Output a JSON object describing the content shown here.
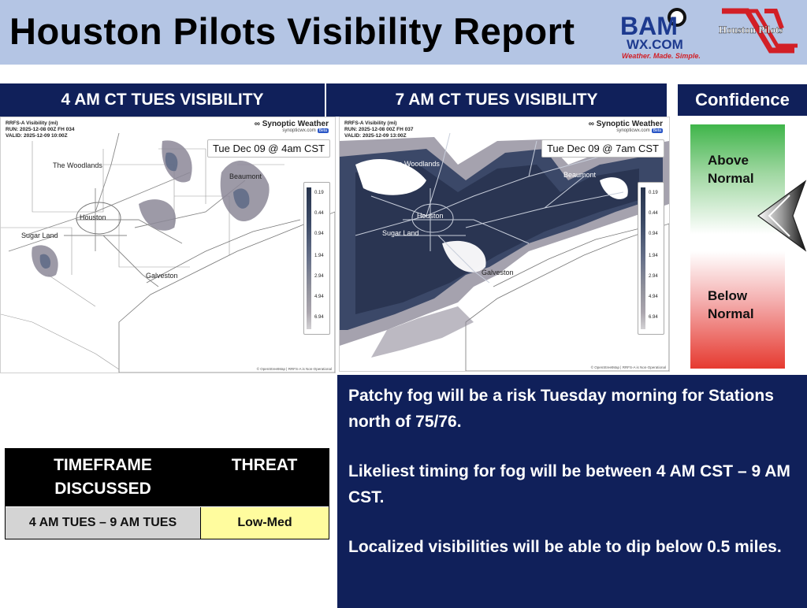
{
  "header": {
    "title": "Houston Pilots Visibility Report",
    "logo_bam_top": "BAM",
    "logo_bam_mid": "WX.COM",
    "logo_bam_tag": "Weather. Made. Simple.",
    "logo_hp": "Houston Pilots"
  },
  "panels": [
    {
      "heading": "4 AM CT TUES VISIBILITY",
      "meta_line1": "RRFS-A Visibility (mi)",
      "meta_line2": "RUN: 2025-12-08 00Z FH 034",
      "meta_line3": "VALID: 2025-12-09 10:00Z",
      "brand": "Synoptic Weather",
      "brand_url": "synopticwx.com",
      "beta": "Beta",
      "date_tag": "Tue Dec 09 @ 4am CST",
      "cities": [
        "The Woodlands",
        "Houston",
        "Sugar Land",
        "Galveston",
        "Beaumont"
      ],
      "attribution": "© OpenStreetMap | RRFS-A is Non-Operational"
    },
    {
      "heading": "7 AM CT TUES VISIBILITY",
      "meta_line1": "RRFS-A Visibility (mi)",
      "meta_line2": "RUN: 2025-12-08 00Z FH 037",
      "meta_line3": "VALID: 2025-12-09 13:00Z",
      "brand": "Synoptic Weather",
      "brand_url": "synopticwx.com",
      "beta": "Beta",
      "date_tag": "Tue Dec 09 @ 7am CST",
      "cities": [
        "The Woodlands",
        "Houston",
        "Sugar Land",
        "Galveston",
        "Beaumont"
      ],
      "attribution": "© OpenStreetMap | RRFS-A is Non-Operational"
    }
  ],
  "legend_ticks": [
    "0.19",
    "0.44",
    "0.94",
    "1.94",
    "2.94",
    "4.94",
    "6.94"
  ],
  "confidence": {
    "heading": "Confidence",
    "above": "Above Normal",
    "below": "Below Normal",
    "level": "Above Normal"
  },
  "table": {
    "col1_header": "TIMEFRAME DISCUSSED",
    "col2_header": "THREAT",
    "timeframe": "4 AM TUES – 9 AM TUES",
    "threat": "Low-Med"
  },
  "text": {
    "p1": "Patchy fog will be a risk Tuesday morning for Stations north of 75/76.",
    "p2": "Likeliest timing for fog will be between 4 AM CST – 9 AM CST.",
    "p3": "Localized visibilities will be able to dip below 0.5 miles."
  },
  "colors": {
    "header_bg": "#b4c5e4",
    "navy": "#10205a",
    "threat_fill": "#fffc9e"
  }
}
